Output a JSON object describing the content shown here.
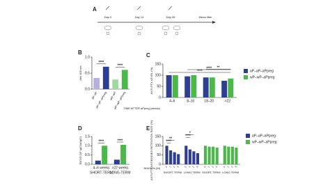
{
  "figure": {
    "panel_labels": [
      "A",
      "B",
      "C",
      "D",
      "E"
    ],
    "timeline": [
      "Day 0",
      "Day 14",
      "Day 28",
      "Wean litter"
    ]
  },
  "chart_data": [
    {
      "type": "bar",
      "y_label": "Abs 405 nm",
      "categories": [
        "aP–aP",
        "aP–aP–aPpreg",
        "wP–wP",
        "wP–wP–aPpreg"
      ],
      "values": [
        0.35,
        0.7,
        0.3,
        0.6
      ],
      "colors": [
        "#b7b0dc",
        "#2e3f8f",
        "#9ed99e",
        "#4cb84c"
      ],
      "ylim": [
        0,
        1
      ],
      "yticks": [
        {
          "value": 0,
          "label": "0.0"
        },
        {
          "value": 0.5,
          "label": "0.5"
        },
        {
          "value": 1,
          "label": "1.0"
        }
      ],
      "annotations": [
        "****",
        "****"
      ]
    },
    {
      "type": "grouped-bar",
      "y_label": "ANTI-PTX LEVEL (%)",
      "x_label": "TIME AFTER aPpreg (weeks)",
      "categories": [
        "4–6",
        "8–10",
        "18–20",
        ">22"
      ],
      "series": [
        {
          "name": "aP–aP–aPpreg",
          "color": "#2e3f8f",
          "values": [
            100,
            95,
            90,
            75
          ]
        },
        {
          "name": "wP–wP–aPpreg",
          "color": "#4cb84c",
          "values": [
            100,
            100,
            90,
            85
          ]
        }
      ],
      "ylim": [
        0,
        150
      ],
      "yticks": [
        0,
        50,
        100,
        150
      ],
      "annotations": [
        "****",
        "****",
        "**"
      ]
    },
    {
      "type": "grouped-bar",
      "y_label": "RATIO OF IgG2a/IgG1",
      "categories": [
        "4–6 weeks",
        ">22 weeks"
      ],
      "groups": [
        "SHORT-TERM",
        "LONG-TERM"
      ],
      "series": [
        {
          "color": "#2e3f8f",
          "values": [
            0.2,
            0.25
          ]
        },
        {
          "color": "#4cb84c",
          "values": [
            1.0,
            1.05
          ]
        }
      ],
      "ylim": [
        0,
        1.5
      ],
      "yticks": [
        {
          "value": 0,
          "label": "0.0"
        },
        {
          "value": 0.5,
          "label": "0.5"
        },
        {
          "value": 1,
          "label": "1.0"
        },
        {
          "value": 1.5,
          "label": "1.5"
        }
      ],
      "annotations": [
        "****",
        "****"
      ]
    },
    {
      "type": "block-bar",
      "y_label": "ANTI-PTX ANTIBODIES RETENTION RATE (%)",
      "x_label": "NH4SCN (M)",
      "categories": [
        "0",
        "1",
        "2",
        "3",
        "0",
        "1",
        "2",
        "3"
      ],
      "groups": [
        "SHORT-TERM",
        "LONG-TERM"
      ],
      "series": [
        {
          "name": "aP–aP–aPpreg",
          "color": "#2e3f8f",
          "values": [
            100,
            75,
            65,
            55,
            100,
            80,
            70,
            60
          ]
        },
        {
          "name": "wP–wP–aPpreg",
          "color": "#4cb84c",
          "values": [
            100,
            95,
            95,
            90,
            100,
            95,
            95,
            90
          ]
        }
      ],
      "ylim": [
        0,
        150
      ],
      "yticks": [
        0,
        50,
        100,
        150
      ],
      "annotations": [
        "****",
        "**",
        "****",
        "*"
      ]
    }
  ]
}
